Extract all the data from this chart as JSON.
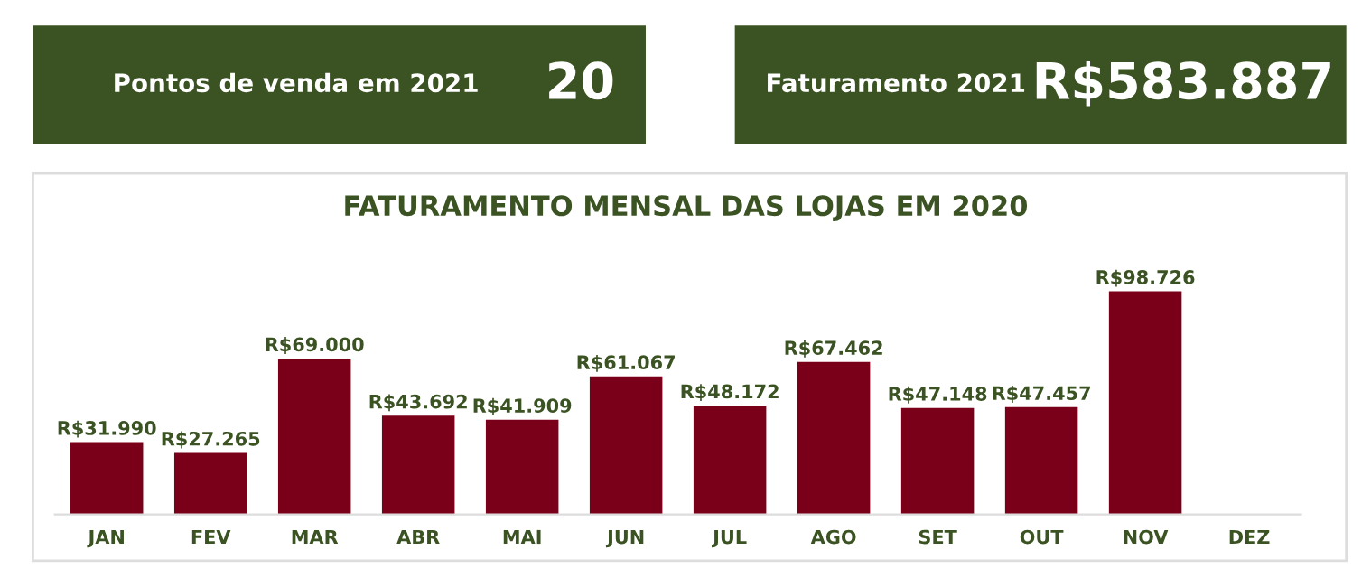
{
  "chart_data": [
    {
      "type": "other",
      "title": "Pontos de venda em 2021",
      "annotations": [
        "20"
      ],
      "color": "#3b5323"
    },
    {
      "type": "other",
      "title": "Faturamento 2021",
      "annotations": [
        "R$583.887"
      ],
      "color": "#3b5323"
    },
    {
      "type": "bar",
      "title": "FATURAMENTO MENSAL DAS LOJAS EM 2020",
      "categories": [
        "JAN",
        "FEV",
        "MAR",
        "ABR",
        "MAI",
        "JUN",
        "JUL",
        "AGO",
        "SET",
        "OUT",
        "NOV",
        "DEZ"
      ],
      "values": [
        31990,
        27265,
        69000,
        43692,
        41909,
        61067,
        48172,
        67462,
        47148,
        47457,
        98726,
        null
      ],
      "value_labels": [
        "R$31.990",
        "R$27.265",
        "R$69.000",
        "R$43.692",
        "R$41.909",
        "R$61.067",
        "R$48.172",
        "R$67.462",
        "R$47.148",
        "R$47.457",
        "R$98.726",
        null
      ],
      "color": "#7a0019",
      "grid": false,
      "tick_labels": "x"
    }
  ]
}
